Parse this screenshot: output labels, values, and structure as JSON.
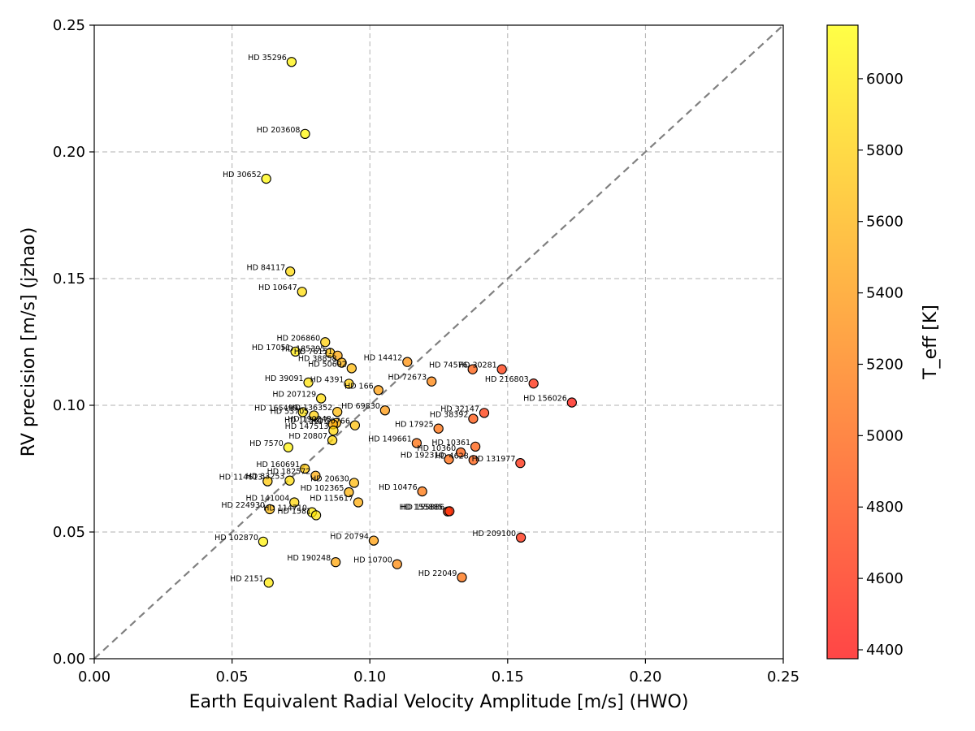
{
  "chart_data": {
    "type": "scatter",
    "title": "",
    "xlabel": "Earth Equivalent Radial Velocity Amplitude [m/s] (HWO)",
    "ylabel": "RV precision [m/s] (jzhao)",
    "xlim": [
      0,
      0.25
    ],
    "ylim": [
      0,
      0.25
    ],
    "x_ticks": [
      "0.00",
      "0.05",
      "0.10",
      "0.15",
      "0.20",
      "0.25"
    ],
    "y_ticks": [
      "0.00",
      "0.05",
      "0.10",
      "0.15",
      "0.20",
      "0.25"
    ],
    "grid": true,
    "reference_line": "y = x (dashed)",
    "colorbar": {
      "label": "T_eff [K]",
      "min": 4375,
      "max": 6150,
      "ticks": [
        "4400",
        "4600",
        "4800",
        "5000",
        "5200",
        "5400",
        "5600",
        "5800",
        "6000"
      ],
      "colormap": "autumn",
      "color_low": "#ff0000",
      "color_high": "#ffff00"
    },
    "points": [
      {
        "label": "HD 35296",
        "x": 0.0716,
        "y": 0.2355,
        "teff": 6050
      },
      {
        "label": "HD 203608",
        "x": 0.0765,
        "y": 0.2071,
        "teff": 6080
      },
      {
        "label": "HD 30652",
        "x": 0.0624,
        "y": 0.1894,
        "teff": 6100
      },
      {
        "label": "HD 84117",
        "x": 0.0711,
        "y": 0.1528,
        "teff": 5880
      },
      {
        "label": "HD 10647",
        "x": 0.0754,
        "y": 0.1448,
        "teff": 5900
      },
      {
        "label": "HD 206860",
        "x": 0.0838,
        "y": 0.1249,
        "teff": 5800
      },
      {
        "label": "HD 17051",
        "x": 0.073,
        "y": 0.1212,
        "teff": 6000
      },
      {
        "label": "HD 185395",
        "x": 0.0856,
        "y": 0.1207,
        "teff": 5700
      },
      {
        "label": "HD 76151",
        "x": 0.0883,
        "y": 0.1196,
        "teff": 5500
      },
      {
        "label": "HD 38858",
        "x": 0.0898,
        "y": 0.1168,
        "teff": 5600
      },
      {
        "label": "HD 50692",
        "x": 0.0934,
        "y": 0.1146,
        "teff": 5650
      },
      {
        "label": "HD 14412",
        "x": 0.1136,
        "y": 0.1171,
        "teff": 5350
      },
      {
        "label": "HD 74576",
        "x": 0.1373,
        "y": 0.1142,
        "teff": 4950
      },
      {
        "label": "HD 30281",
        "x": 0.1479,
        "y": 0.1142,
        "teff": 4700
      },
      {
        "label": "HD 216803",
        "x": 0.1594,
        "y": 0.1086,
        "teff": 4600
      },
      {
        "label": "HD 72673",
        "x": 0.1224,
        "y": 0.1094,
        "teff": 5250
      },
      {
        "label": "HD 39091",
        "x": 0.0777,
        "y": 0.109,
        "teff": 5950
      },
      {
        "label": "HD 4391",
        "x": 0.0924,
        "y": 0.1085,
        "teff": 5800
      },
      {
        "label": "HD 166",
        "x": 0.1031,
        "y": 0.106,
        "teff": 5450
      },
      {
        "label": "HD 207129",
        "x": 0.0823,
        "y": 0.1027,
        "teff": 5900
      },
      {
        "label": "HD 156026",
        "x": 0.1733,
        "y": 0.1011,
        "teff": 4450
      },
      {
        "label": "HD 69830",
        "x": 0.1055,
        "y": 0.098,
        "teff": 5400
      },
      {
        "label": "HD 136352",
        "x": 0.0882,
        "y": 0.0974,
        "teff": 5650
      },
      {
        "label": "HD 165499",
        "x": 0.0757,
        "y": 0.0973,
        "teff": 5950
      },
      {
        "label": "HD 53705",
        "x": 0.0797,
        "y": 0.096,
        "teff": 5800
      },
      {
        "label": "HD 32147",
        "x": 0.1415,
        "y": 0.097,
        "teff": 4700
      },
      {
        "label": "HD 38392",
        "x": 0.1375,
        "y": 0.0947,
        "teff": 4900
      },
      {
        "label": "HD 20766",
        "x": 0.0946,
        "y": 0.0921,
        "teff": 5700
      },
      {
        "label": "HD 190248",
        "x": 0.0878,
        "y": 0.093,
        "teff": 5600
      },
      {
        "label": "HD 115617",
        "x": 0.0866,
        "y": 0.0925,
        "teff": 5550
      },
      {
        "label": "HD 147513",
        "x": 0.0868,
        "y": 0.09,
        "teff": 5850
      },
      {
        "label": "HD 17925",
        "x": 0.1249,
        "y": 0.0908,
        "teff": 5100
      },
      {
        "label": "HD 20807",
        "x": 0.0864,
        "y": 0.0862,
        "teff": 5850
      },
      {
        "label": "HD 149661",
        "x": 0.117,
        "y": 0.0851,
        "teff": 5100
      },
      {
        "label": "HD 10361",
        "x": 0.1383,
        "y": 0.0837,
        "teff": 4950
      },
      {
        "label": "HD 7570",
        "x": 0.0704,
        "y": 0.0834,
        "teff": 6050
      },
      {
        "label": "HD 10360",
        "x": 0.133,
        "y": 0.0814,
        "teff": 4950
      },
      {
        "label": "HD 192310",
        "x": 0.1287,
        "y": 0.0787,
        "teff": 5050
      },
      {
        "label": "HD 4628",
        "x": 0.1376,
        "y": 0.0784,
        "teff": 4950
      },
      {
        "label": "HD 131977",
        "x": 0.1546,
        "y": 0.0772,
        "teff": 4600
      },
      {
        "label": "HD 160691",
        "x": 0.0764,
        "y": 0.075,
        "teff": 5750
      },
      {
        "label": "HD 182572",
        "x": 0.0803,
        "y": 0.0722,
        "teff": 5550
      },
      {
        "label": "HD 114613",
        "x": 0.0629,
        "y": 0.07,
        "teff": 5750
      },
      {
        "label": "HD 33253",
        "x": 0.0709,
        "y": 0.0703,
        "teff": 5900
      },
      {
        "label": "HD 20630",
        "x": 0.0943,
        "y": 0.0694,
        "teff": 5650
      },
      {
        "label": "HD 102365",
        "x": 0.0924,
        "y": 0.0657,
        "teff": 5600
      },
      {
        "label": "HD 10476",
        "x": 0.119,
        "y": 0.066,
        "teff": 5150
      },
      {
        "label": "HD 141004",
        "x": 0.0726,
        "y": 0.0617,
        "teff": 5850
      },
      {
        "label": "HD 115617",
        "x": 0.0958,
        "y": 0.0617,
        "teff": 5550
      },
      {
        "label": "HD 224930",
        "x": 0.0637,
        "y": 0.059,
        "teff": 5650
      },
      {
        "label": "HD 114710",
        "x": 0.079,
        "y": 0.0578,
        "teff": 6000
      },
      {
        "label": "HD 1581",
        "x": 0.0805,
        "y": 0.0566,
        "teff": 5950
      },
      {
        "label": "HD 155885",
        "x": 0.1283,
        "y": 0.0581,
        "teff": 4750
      },
      {
        "label": "HD 155886",
        "x": 0.1289,
        "y": 0.0582,
        "teff": 4650
      },
      {
        "label": "HD 102870",
        "x": 0.0613,
        "y": 0.0462,
        "teff": 6050
      },
      {
        "label": "HD 20794",
        "x": 0.1014,
        "y": 0.0466,
        "teff": 5450
      },
      {
        "label": "HD 209100",
        "x": 0.1548,
        "y": 0.0478,
        "teff": 4600
      },
      {
        "label": "HD 190248",
        "x": 0.0876,
        "y": 0.0381,
        "teff": 5500
      },
      {
        "label": "HD 10700",
        "x": 0.1099,
        "y": 0.0373,
        "teff": 5300
      },
      {
        "label": "HD 22049",
        "x": 0.1334,
        "y": 0.0321,
        "teff": 5100
      },
      {
        "label": "HD 2151",
        "x": 0.0633,
        "y": 0.03,
        "teff": 6000
      }
    ]
  }
}
